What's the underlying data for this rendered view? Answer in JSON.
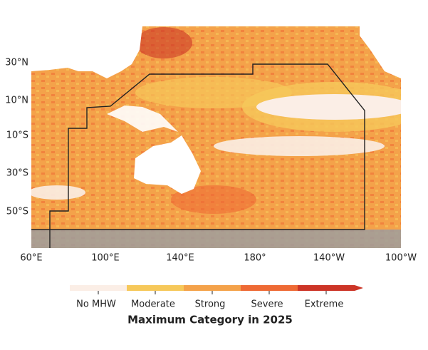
{
  "map": {
    "lat_labels": [
      "30°N",
      "10°N",
      "10°S",
      "30°S",
      "50°S"
    ],
    "lon_labels": [
      "60°E",
      "100°E",
      "140°E",
      "180°",
      "140°W",
      "100°W"
    ],
    "legend": {
      "categories": [
        {
          "label": "No MHW",
          "color": "#fbeee6"
        },
        {
          "label": "Moderate",
          "color": "#f6c85a"
        },
        {
          "label": "Strong",
          "color": "#f4a24a"
        },
        {
          "label": "Severe",
          "color": "#ee6a35"
        },
        {
          "label": "Extreme",
          "color": "#cc3527"
        }
      ],
      "title": "Maximum Category in 2025"
    }
  }
}
